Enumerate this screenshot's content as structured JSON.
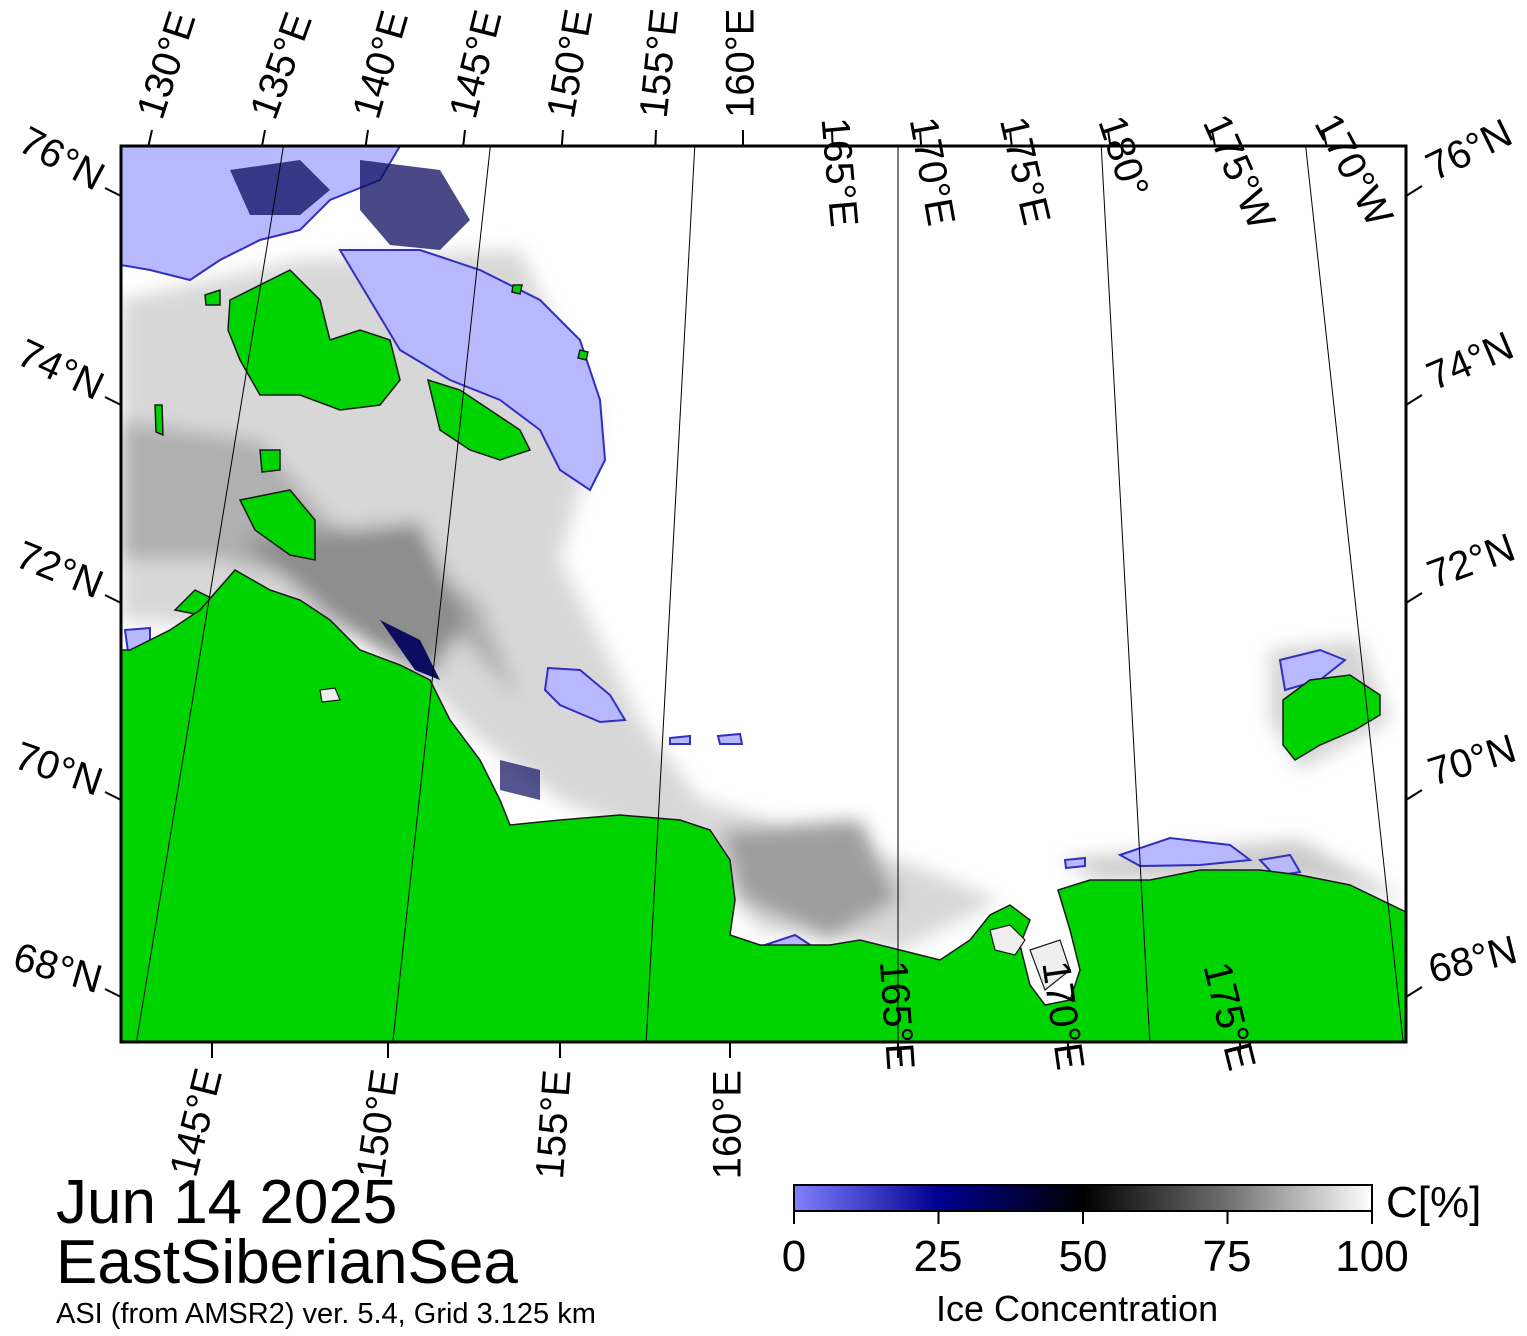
{
  "colors": {
    "land": "#00d400",
    "open_water": "#ffffff",
    "low_ice": "#b8b8ff",
    "mid_ice": "#0c0c60",
    "dark_ice": "#202020",
    "land_mask_gray": "#8a8a8a"
  },
  "map": {
    "type": "polar stereographic sea-ice concentration map",
    "top_lon_labels": [
      "130°E",
      "135°E",
      "140°E",
      "145°E",
      "150°E",
      "155°E",
      "160°E",
      "165°E",
      "170°E",
      "175°E",
      "180°",
      "175°W",
      "170°W"
    ],
    "bottom_lon_labels": [
      "145°E",
      "150°E",
      "155°E",
      "160°E",
      "165°E",
      "170°E",
      "175°E"
    ],
    "lat_labels": [
      "76°N",
      "74°N",
      "72°N",
      "70°N",
      "68°N"
    ]
  },
  "info": {
    "date": "Jun 14 2025",
    "region": "EastSiberianSea",
    "product": "ASI (from AMSR2) ver. 5.4,  Grid 3.125 km"
  },
  "colorbar": {
    "title": "Ice Concentration",
    "unit": "C[%]",
    "ticks": [
      "0",
      "25",
      "50",
      "75",
      "100"
    ],
    "min": 0,
    "max": 100
  }
}
